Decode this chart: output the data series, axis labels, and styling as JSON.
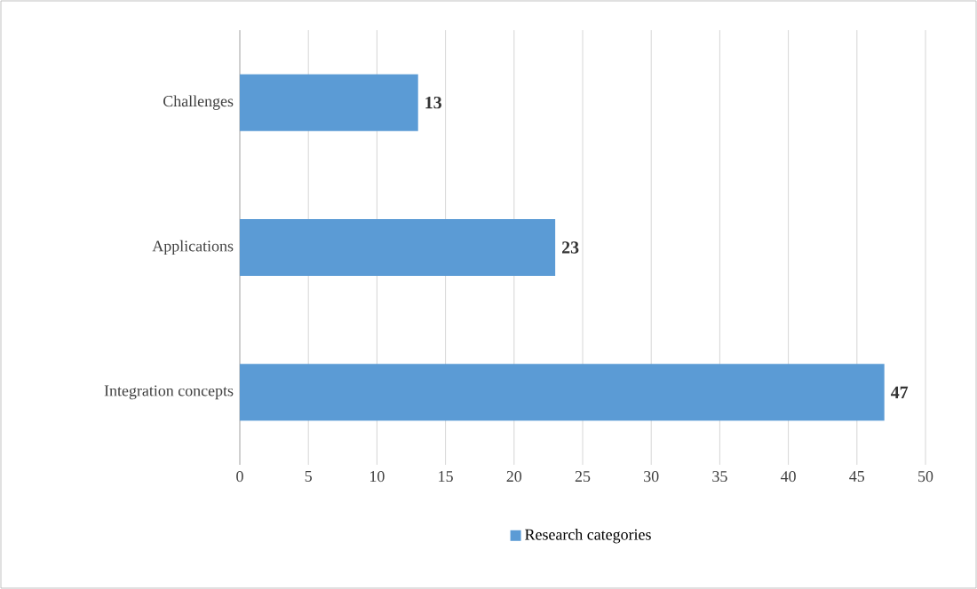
{
  "chart_data": {
    "type": "bar",
    "orientation": "horizontal",
    "categories": [
      "Challenges",
      "Applications",
      "Integration concepts"
    ],
    "series": [
      {
        "name": "Research categories",
        "color": "#5b9bd5",
        "values": [
          13,
          23,
          47
        ]
      }
    ],
    "xlim": [
      0,
      50
    ],
    "xticks": [
      0,
      5,
      10,
      15,
      20,
      25,
      30,
      35,
      40,
      45,
      50
    ],
    "grid": "x",
    "legend": "bottom",
    "data_labels": true
  }
}
